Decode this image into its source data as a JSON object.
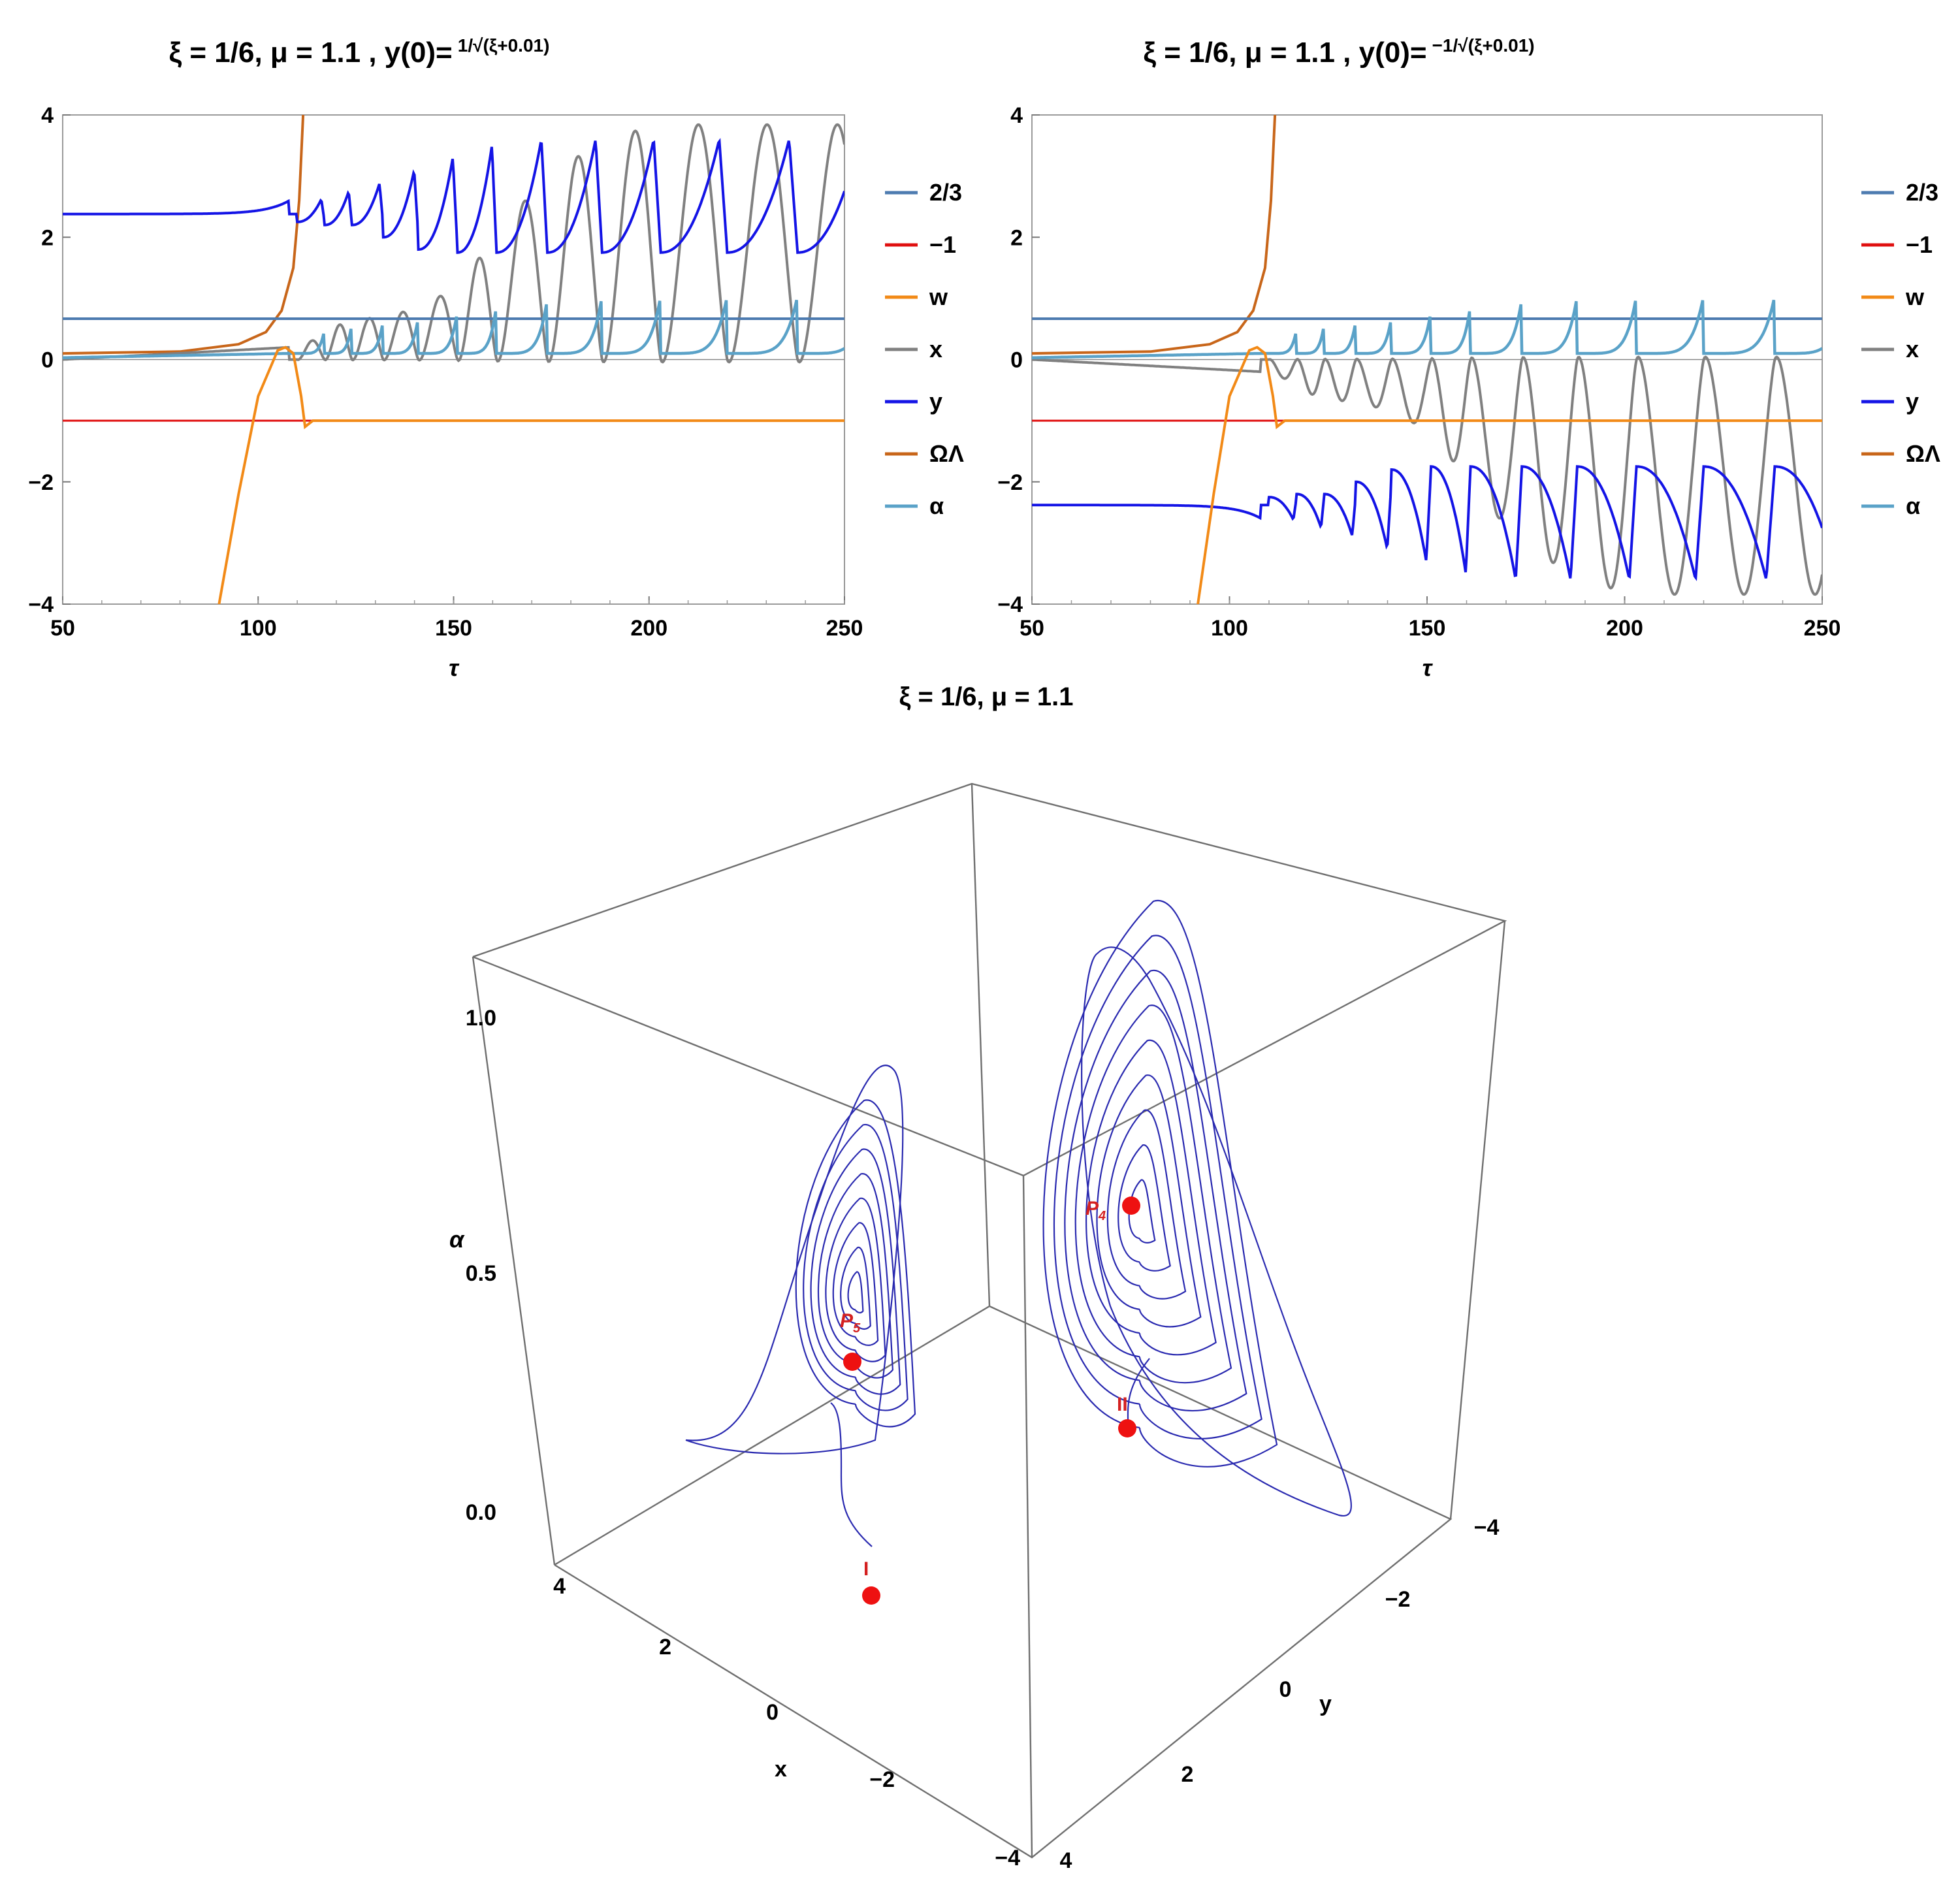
{
  "chart_data": [
    {
      "type": "line",
      "title": "ξ = 1/6, μ = 1.1 , y(0)= 1/√(ξ+0.01)",
      "xlabel": "τ",
      "ylabel": "",
      "xlim": [
        50,
        250
      ],
      "ylim": [
        -4,
        4
      ],
      "xticks": [
        50,
        100,
        150,
        200,
        250
      ],
      "yticks": [
        -4,
        -2,
        0,
        2,
        4
      ],
      "legend": [
        "2/3",
        "−1",
        "w",
        "x",
        "y",
        "ΩΛ",
        "α"
      ],
      "legend_position": "right",
      "colors": {
        "c23": "#4d7bb0",
        "m1": "#e01010",
        "w": "#f28a17",
        "x": "#808080",
        "y": "#1414e6",
        "omega": "#c8661a",
        "alpha": "#5aa2c8"
      },
      "series": [
        {
          "name": "2/3",
          "kind": "const",
          "value": 0.667
        },
        {
          "name": "−1",
          "kind": "const",
          "value": -1
        },
        {
          "name": "w",
          "points": [
            [
              90,
              -4
            ],
            [
              95,
              -2.2
            ],
            [
              100,
              -0.6
            ],
            [
              105,
              0.15
            ],
            [
              107,
              0.2
            ],
            [
              109,
              0.1
            ],
            [
              111,
              -0.6
            ],
            [
              112,
              -1.1
            ],
            [
              114,
              -1.0
            ],
            [
              250,
              -1.0
            ]
          ]
        },
        {
          "name": "x",
          "amps": [
            0.3,
            0.55,
            0.65,
            0.75,
            1.0,
            1.6,
            2.5,
            3.2,
            3.6,
            3.7,
            3.7,
            3.7
          ]
        },
        {
          "name": "y",
          "start": 2.38,
          "peaks": [
            2.62,
            2.75,
            2.88,
            3.1,
            3.3,
            3.5,
            3.6,
            3.6,
            3.6,
            3.6,
            3.6,
            3.6
          ],
          "troughs": [
            2.25,
            2.2,
            2.2,
            2.0,
            1.8,
            1.75,
            1.75,
            1.75,
            1.75,
            1.75,
            1.75,
            1.75
          ]
        },
        {
          "name": "ΩΛ",
          "points": [
            [
              50,
              0.1
            ],
            [
              80,
              0.13
            ],
            [
              95,
              0.25
            ],
            [
              102,
              0.45
            ],
            [
              106,
              0.8
            ],
            [
              109,
              1.5
            ],
            [
              110.5,
              2.6
            ],
            [
              111.5,
              4.0
            ]
          ]
        },
        {
          "name": "α",
          "base": 0.1,
          "peaks": [
            0.5,
            0.6,
            0.65,
            0.7,
            0.8,
            0.9,
            1.0,
            1.05,
            1.05,
            1.05,
            1.05,
            1.05
          ]
        }
      ]
    },
    {
      "type": "line",
      "title": "ξ = 1/6, μ = 1.1 , y(0)= −1/√(ξ+0.01)",
      "xlabel": "τ",
      "ylabel": "",
      "xlim": [
        50,
        250
      ],
      "ylim": [
        -4,
        4
      ],
      "xticks": [
        50,
        100,
        150,
        200,
        250
      ],
      "yticks": [
        -4,
        -2,
        0,
        2,
        4
      ],
      "legend": [
        "2/3",
        "−1",
        "w",
        "x",
        "y",
        "ΩΛ",
        "α"
      ],
      "legend_position": "right",
      "series": [
        {
          "name": "2/3",
          "kind": "const",
          "value": 0.667
        },
        {
          "name": "−1",
          "kind": "const",
          "value": -1
        },
        {
          "name": "w",
          "points": [
            [
              92,
              -4
            ],
            [
              96,
              -2.2
            ],
            [
              100,
              -0.6
            ],
            [
              105,
              0.15
            ],
            [
              107,
              0.2
            ],
            [
              109,
              0.1
            ],
            [
              111,
              -0.6
            ],
            [
              112,
              -1.1
            ],
            [
              114,
              -1.0
            ],
            [
              250,
              -1.0
            ]
          ]
        },
        {
          "name": "x",
          "amps": [
            -0.3,
            -0.55,
            -0.65,
            -0.75,
            -1.0,
            -1.6,
            -2.5,
            -3.2,
            -3.6,
            -3.7,
            -3.7,
            -3.7
          ]
        },
        {
          "name": "y",
          "start": -2.38,
          "peaks": [
            -2.62,
            -2.75,
            -2.88,
            -3.1,
            -3.3,
            -3.5,
            -3.6,
            -3.6,
            -3.6,
            -3.6,
            -3.6,
            -3.6
          ],
          "troughs": [
            -2.25,
            -2.2,
            -2.2,
            -2.0,
            -1.8,
            -1.75,
            -1.75,
            -1.75,
            -1.75,
            -1.75,
            -1.75,
            -1.75
          ]
        },
        {
          "name": "ΩΛ",
          "points": [
            [
              50,
              0.1
            ],
            [
              80,
              0.13
            ],
            [
              95,
              0.25
            ],
            [
              102,
              0.45
            ],
            [
              106,
              0.8
            ],
            [
              109,
              1.5
            ],
            [
              110.5,
              2.6
            ],
            [
              111.5,
              4.0
            ]
          ]
        },
        {
          "name": "α",
          "base": 0.1,
          "peaks": [
            0.5,
            0.6,
            0.65,
            0.7,
            0.8,
            0.9,
            1.0,
            1.05,
            1.05,
            1.05,
            1.05,
            1.05
          ]
        }
      ]
    },
    {
      "type": "scatter",
      "title": "ξ = 1/6, μ = 1.1",
      "axes": {
        "x": [
          4,
          -4
        ],
        "y": [
          -4,
          4
        ],
        "alpha": [
          0.0,
          1.0
        ]
      },
      "xticks": [
        4,
        2,
        0,
        -2,
        -4
      ],
      "yticks": [
        -4,
        -2,
        0,
        2,
        4
      ],
      "alphaticks": [
        0.0,
        0.5,
        1.0
      ],
      "points": [
        "P5",
        "P4",
        "I",
        "II"
      ]
    }
  ],
  "panels": [
    {
      "title_prefix": "ξ = 1/6, μ = 1.1 , y(0)=",
      "title_frac": "1/√(ξ+0.01)"
    },
    {
      "title_prefix": "ξ = 1/6, μ = 1.1 , y(0)=",
      "title_frac": "−1/√(ξ+0.01)"
    }
  ],
  "legend_labels": [
    "2/3",
    "−1",
    "w",
    "x",
    "y",
    "ΩΛ",
    "α"
  ],
  "phase3d": {
    "title": "ξ = 1/6, μ = 1.1",
    "labels": {
      "alpha": "α",
      "x": "x",
      "y": "y"
    },
    "points": [
      {
        "label": "P",
        "sub": "5"
      },
      {
        "label": "P",
        "sub": "4"
      },
      {
        "label": "I"
      },
      {
        "label": "II"
      }
    ],
    "alpha_ticks": [
      "0.0",
      "0.5",
      "1.0"
    ],
    "x_ticks": [
      "4",
      "2",
      "0",
      "−2",
      "−4"
    ],
    "y_ticks": [
      "−4",
      "−2",
      "0",
      "2",
      "4"
    ]
  }
}
